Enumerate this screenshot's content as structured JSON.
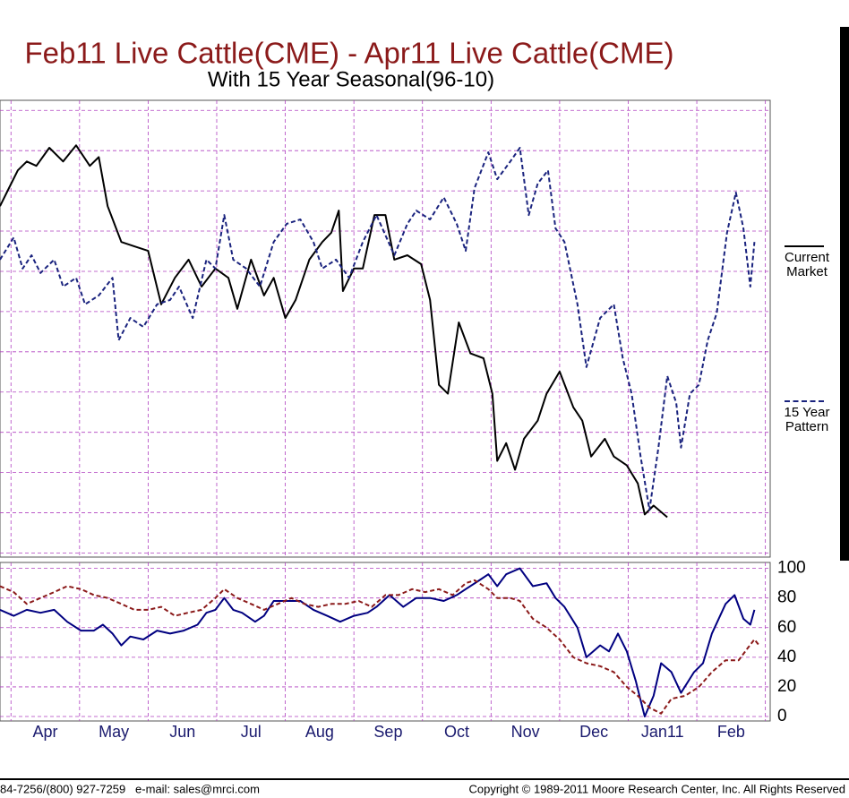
{
  "chart_data": [
    {
      "type": "line",
      "title": "Feb11 Live Cattle(CME) - Apr11 Live Cattle(CME)",
      "subtitle": "With 15 Year Seasonal(96-10)",
      "xlim": [
        -0.16,
        11.07
      ],
      "xticks": [
        0,
        1,
        2,
        3,
        4,
        5,
        6,
        7,
        8,
        9,
        10,
        11
      ],
      "ylim": [
        -0.1,
        11.25
      ],
      "yticks": [
        0,
        1,
        2,
        3,
        4,
        5,
        6,
        7,
        8,
        9,
        10,
        11
      ],
      "grid": true,
      "series": [
        {
          "name": "Current Market",
          "color": "#000000",
          "dash": false,
          "x": [
            -0.16,
            -0.03,
            0.1,
            0.23,
            0.37,
            0.56,
            0.76,
            0.95,
            1.15,
            1.28,
            1.41,
            1.61,
            1.8,
            2.0,
            2.19,
            2.39,
            2.59,
            2.78,
            2.98,
            3.17,
            3.3,
            3.5,
            3.69,
            3.83,
            4.0,
            4.15,
            4.35,
            4.54,
            4.67,
            4.78,
            4.84,
            5.0,
            5.13,
            5.3,
            5.46,
            5.59,
            5.78,
            5.98,
            6.11,
            6.24,
            6.37,
            6.53,
            6.7,
            6.89,
            7.02,
            7.09,
            7.22,
            7.35,
            7.48,
            7.68,
            7.81,
            8.0,
            8.2,
            8.33,
            8.46,
            8.66,
            8.79,
            8.98,
            9.14,
            9.24,
            9.37,
            9.57
          ],
          "values": [
            8.62,
            9.07,
            9.51,
            9.73,
            9.62,
            10.07,
            9.73,
            10.13,
            9.62,
            9.84,
            8.62,
            7.73,
            7.62,
            7.51,
            6.18,
            6.84,
            7.29,
            6.62,
            7.07,
            6.84,
            6.07,
            7.29,
            6.4,
            6.84,
            5.84,
            6.29,
            7.29,
            7.73,
            7.96,
            8.51,
            6.51,
            7.07,
            7.07,
            8.4,
            8.4,
            7.29,
            7.4,
            7.18,
            6.29,
            4.18,
            3.96,
            5.73,
            4.96,
            4.84,
            3.96,
            2.29,
            2.73,
            2.07,
            2.84,
            3.29,
            3.96,
            4.51,
            3.62,
            3.29,
            2.4,
            2.84,
            2.4,
            2.18,
            1.73,
            0.96,
            1.18,
            0.89
          ]
        },
        {
          "name": "15 Year Pattern",
          "color": "#1a237e",
          "dash": true,
          "x": [
            -0.16,
            0.04,
            0.17,
            0.3,
            0.43,
            0.63,
            0.76,
            0.95,
            1.08,
            1.28,
            1.48,
            1.57,
            1.74,
            1.93,
            2.13,
            2.32,
            2.45,
            2.65,
            2.85,
            2.98,
            3.11,
            3.24,
            3.43,
            3.63,
            3.83,
            4.02,
            4.22,
            4.41,
            4.54,
            4.74,
            4.93,
            5.13,
            5.33,
            5.59,
            5.78,
            5.91,
            6.11,
            6.31,
            6.5,
            6.63,
            6.76,
            6.96,
            7.09,
            7.28,
            7.42,
            7.55,
            7.68,
            7.83,
            7.94,
            8.07,
            8.26,
            8.39,
            8.59,
            8.79,
            8.92,
            9.05,
            9.18,
            9.31,
            9.44,
            9.57,
            9.7,
            9.77,
            9.9,
            10.03,
            10.16,
            10.29,
            10.44,
            10.57,
            10.68,
            10.78,
            10.84
          ],
          "values": [
            7.29,
            7.84,
            7.07,
            7.4,
            6.96,
            7.29,
            6.62,
            6.84,
            6.18,
            6.4,
            6.84,
            5.29,
            5.84,
            5.62,
            6.18,
            6.29,
            6.62,
            5.84,
            7.29,
            7.07,
            8.4,
            7.29,
            7.07,
            6.62,
            7.73,
            8.18,
            8.29,
            7.73,
            7.07,
            7.29,
            6.84,
            7.73,
            8.4,
            7.4,
            8.18,
            8.51,
            8.29,
            8.84,
            8.18,
            7.51,
            9.07,
            9.96,
            9.29,
            9.73,
            10.07,
            8.4,
            9.18,
            9.51,
            8.07,
            7.73,
            6.18,
            4.62,
            5.84,
            6.18,
            4.84,
            3.96,
            2.4,
            1.07,
            2.62,
            4.4,
            3.73,
            2.62,
            3.96,
            4.18,
            5.29,
            5.96,
            7.96,
            8.96,
            8.07,
            6.62,
            7.73
          ]
        }
      ]
    },
    {
      "type": "line",
      "categories": [
        "Apr",
        "May",
        "Jun",
        "Jul",
        "Aug",
        "Sep",
        "Oct",
        "Nov",
        "Dec",
        "Jan11",
        "Feb"
      ],
      "xlim": [
        -0.16,
        11.07
      ],
      "xticks": [
        0,
        1,
        2,
        3,
        4,
        5,
        6,
        7,
        8,
        9,
        10,
        11
      ],
      "ylim": [
        -3,
        104
      ],
      "yticks": [
        0,
        20,
        40,
        60,
        80,
        100
      ],
      "grid": true,
      "series": [
        {
          "color": "#000080",
          "dash": false,
          "x": [
            -0.16,
            0.04,
            0.23,
            0.43,
            0.63,
            0.82,
            1.02,
            1.21,
            1.34,
            1.48,
            1.61,
            1.74,
            1.93,
            2.13,
            2.32,
            2.52,
            2.72,
            2.85,
            2.98,
            3.11,
            3.24,
            3.37,
            3.56,
            3.69,
            3.83,
            4.02,
            4.22,
            4.41,
            4.61,
            4.8,
            5.0,
            5.2,
            5.33,
            5.52,
            5.72,
            5.91,
            6.11,
            6.31,
            6.5,
            6.63,
            6.83,
            6.96,
            7.09,
            7.22,
            7.42,
            7.61,
            7.81,
            7.94,
            8.07,
            8.26,
            8.39,
            8.59,
            8.72,
            8.85,
            8.98,
            9.11,
            9.24,
            9.37,
            9.48,
            9.63,
            9.77,
            9.96,
            10.09,
            10.22,
            10.42,
            10.55,
            10.68,
            10.78,
            10.84
          ],
          "values": [
            72,
            68,
            72,
            70,
            72,
            64,
            58,
            58,
            62,
            56,
            48,
            54,
            52,
            58,
            56,
            58,
            62,
            70,
            72,
            80,
            72,
            70,
            64,
            68,
            78,
            78,
            78,
            72,
            68,
            64,
            68,
            70,
            74,
            82,
            74,
            80,
            80,
            78,
            82,
            86,
            92,
            96,
            88,
            96,
            100,
            88,
            90,
            80,
            74,
            60,
            40,
            48,
            44,
            56,
            44,
            24,
            0,
            14,
            36,
            30,
            16,
            30,
            36,
            56,
            76,
            82,
            66,
            62,
            72
          ]
        },
        {
          "color": "#8b1a1a",
          "dash": true,
          "x": [
            -0.16,
            0.04,
            0.23,
            0.43,
            0.63,
            0.82,
            1.02,
            1.21,
            1.41,
            1.61,
            1.8,
            2.0,
            2.19,
            2.39,
            2.58,
            2.78,
            2.98,
            3.11,
            3.3,
            3.5,
            3.69,
            3.89,
            4.09,
            4.28,
            4.48,
            4.67,
            4.87,
            5.07,
            5.26,
            5.46,
            5.65,
            5.85,
            6.04,
            6.24,
            6.44,
            6.63,
            6.76,
            6.96,
            7.09,
            7.28,
            7.42,
            7.61,
            7.81,
            8.0,
            8.2,
            8.39,
            8.59,
            8.79,
            8.98,
            9.14,
            9.31,
            9.48,
            9.63,
            9.83,
            10.03,
            10.22,
            10.42,
            10.61,
            10.74,
            10.84,
            10.91
          ],
          "values": [
            88,
            84,
            76,
            80,
            84,
            88,
            86,
            82,
            80,
            76,
            72,
            72,
            74,
            68,
            70,
            72,
            80,
            86,
            80,
            76,
            72,
            76,
            80,
            76,
            74,
            76,
            76,
            78,
            74,
            82,
            82,
            86,
            84,
            86,
            82,
            90,
            92,
            86,
            80,
            80,
            78,
            66,
            60,
            52,
            40,
            36,
            34,
            30,
            20,
            14,
            6,
            2,
            12,
            14,
            20,
            30,
            38,
            38,
            46,
            52,
            48
          ]
        }
      ]
    }
  ],
  "footer": {
    "left": "84-7256/(800) 927-7259   e-mail: sales@mrci.com",
    "right": "Copyright © 1989-2011 Moore Research Center, Inc. All Rights Reserved"
  }
}
